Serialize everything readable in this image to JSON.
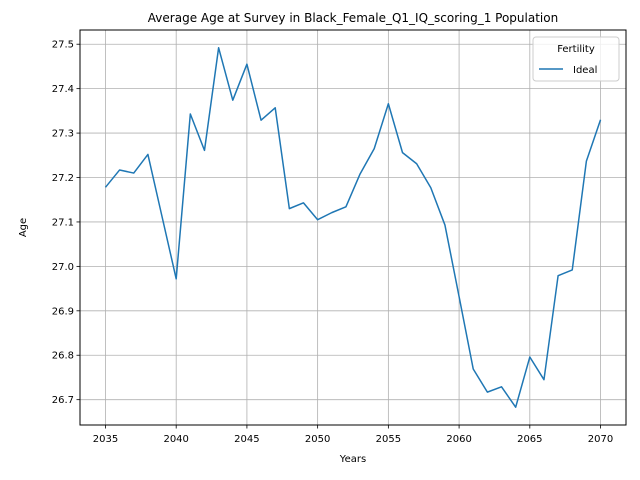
{
  "chart_data": {
    "type": "line",
    "title": "Average Age at Survey in Black_Female_Q1_IQ_scoring_1 Population",
    "xlabel": "Years",
    "ylabel": "Age",
    "xlim": [
      2033.2,
      2071.8
    ],
    "ylim": [
      26.643,
      27.532
    ],
    "xticks": [
      2035,
      2040,
      2045,
      2050,
      2055,
      2060,
      2065,
      2070
    ],
    "yticks": [
      26.7,
      26.8,
      26.9,
      27.0,
      27.1,
      27.2,
      27.3,
      27.4,
      27.5
    ],
    "grid": true,
    "legend": {
      "title": "Fertility",
      "placement": "top-right"
    },
    "x": [
      2035,
      2036,
      2037,
      2038,
      2039,
      2040,
      2041,
      2042,
      2043,
      2044,
      2045,
      2046,
      2047,
      2048,
      2049,
      2050,
      2051,
      2052,
      2053,
      2054,
      2055,
      2056,
      2057,
      2058,
      2059,
      2060,
      2061,
      2062,
      2063,
      2064,
      2065,
      2066,
      2067,
      2068,
      2069,
      2070
    ],
    "series": [
      {
        "name": "Ideal",
        "color": "#1f77b4",
        "values": [
          27.178,
          27.217,
          27.21,
          27.252,
          27.112,
          26.972,
          27.343,
          27.261,
          27.492,
          27.374,
          27.455,
          27.329,
          27.357,
          27.13,
          27.143,
          27.105,
          27.121,
          27.134,
          27.208,
          27.265,
          27.366,
          27.256,
          27.231,
          27.177,
          27.093,
          26.932,
          26.769,
          26.717,
          26.729,
          26.683,
          26.796,
          26.745,
          26.979,
          26.992,
          27.237,
          27.33
        ]
      }
    ]
  }
}
